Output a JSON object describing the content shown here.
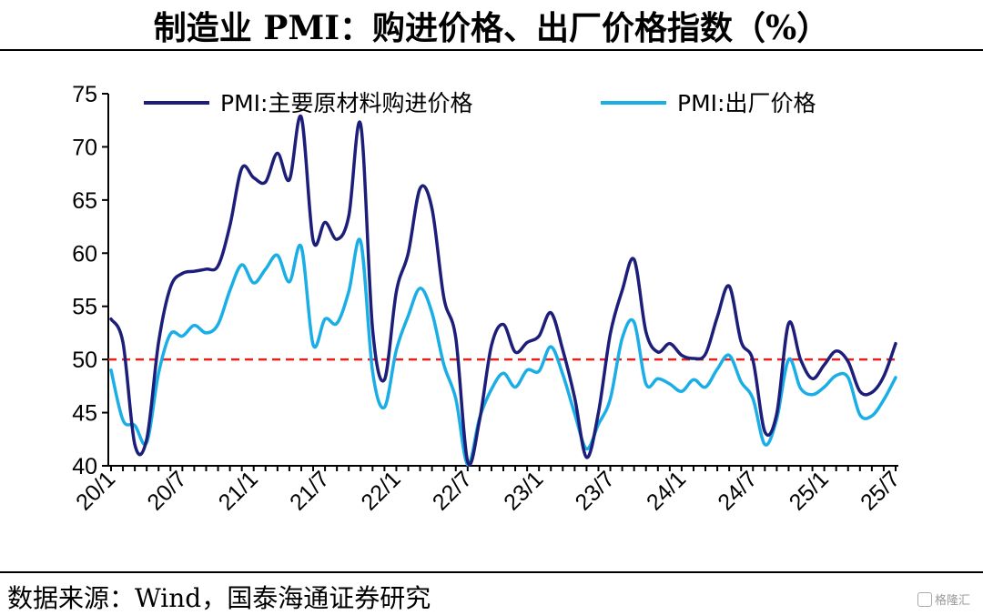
{
  "title": "制造业 PMI：购进价格、出厂价格指数（%）",
  "source": "数据来源：Wind，国泰海通证券研究",
  "watermark": "格隆汇",
  "chart_data": {
    "type": "line",
    "title": "制造业 PMI：购进价格、出厂价格指数（%）",
    "xlabel": "",
    "ylabel": "",
    "ylim": [
      40,
      75
    ],
    "yticks": [
      40,
      45,
      50,
      55,
      60,
      65,
      70,
      75
    ],
    "x": [
      "20/1",
      "20/2",
      "20/3",
      "20/4",
      "20/5",
      "20/6",
      "20/7",
      "20/8",
      "20/9",
      "20/10",
      "20/11",
      "20/12",
      "21/1",
      "21/2",
      "21/3",
      "21/4",
      "21/5",
      "21/6",
      "21/7",
      "21/8",
      "21/9",
      "21/10",
      "21/11",
      "21/12",
      "22/1",
      "22/2",
      "22/3",
      "22/4",
      "22/5",
      "22/6",
      "22/7",
      "22/8",
      "22/9",
      "22/10",
      "22/11",
      "22/12",
      "23/1",
      "23/2",
      "23/3",
      "23/4",
      "23/5",
      "23/6",
      "23/7",
      "23/8",
      "23/9",
      "23/10",
      "23/11",
      "23/12",
      "24/1",
      "24/2",
      "24/3",
      "24/4",
      "24/5",
      "24/6",
      "24/7",
      "24/8",
      "24/9",
      "24/10",
      "24/11",
      "24/12",
      "25/1",
      "25/2",
      "25/3",
      "25/4",
      "25/5",
      "25/6",
      "25/7"
    ],
    "xtick_labels": [
      "20/1",
      "20/7",
      "21/1",
      "21/7",
      "22/1",
      "22/7",
      "23/1",
      "23/7",
      "24/1",
      "24/7",
      "25/1",
      "25/7"
    ],
    "xtick_step": 6,
    "grid": false,
    "legend_position": "top",
    "reference_line": {
      "y": 50,
      "color": "#e8211f",
      "style": "dashed"
    },
    "series": [
      {
        "name": "PMI:主要原材料购进价格",
        "color": "#1c1e7a",
        "values": [
          53.8,
          51.6,
          42.0,
          42.5,
          51.6,
          56.8,
          58.1,
          58.3,
          58.5,
          58.8,
          62.6,
          68.0,
          67.1,
          66.7,
          69.4,
          66.9,
          72.8,
          61.2,
          62.9,
          61.3,
          63.5,
          72.1,
          52.9,
          48.1,
          56.4,
          60.0,
          66.1,
          64.2,
          55.8,
          52.0,
          40.4,
          44.3,
          51.3,
          53.3,
          50.7,
          51.6,
          52.2,
          54.4,
          50.9,
          46.4,
          40.8,
          45.0,
          52.4,
          56.5,
          59.4,
          52.6,
          50.7,
          51.5,
          50.4,
          50.1,
          50.5,
          54.0,
          56.9,
          51.7,
          49.9,
          43.2,
          44.9,
          53.4,
          50.0,
          48.2,
          49.5,
          50.8,
          49.8,
          47.0,
          46.9,
          48.4,
          51.5
        ]
      },
      {
        "name": "PMI:出厂价格",
        "color": "#1aaee6",
        "values": [
          49.0,
          44.3,
          43.8,
          42.2,
          48.7,
          52.4,
          52.2,
          53.2,
          52.5,
          53.3,
          56.5,
          58.9,
          57.2,
          58.5,
          59.8,
          57.3,
          60.6,
          51.4,
          53.8,
          53.4,
          56.4,
          61.1,
          48.9,
          45.5,
          50.9,
          54.1,
          56.7,
          54.4,
          49.5,
          46.3,
          40.1,
          44.5,
          47.2,
          48.7,
          47.4,
          49.0,
          48.9,
          51.2,
          48.6,
          44.9,
          41.6,
          43.9,
          46.3,
          52.0,
          53.5,
          47.7,
          48.2,
          47.7,
          47.0,
          48.1,
          47.4,
          49.1,
          50.4,
          47.9,
          46.3,
          42.0,
          44.4,
          50.0,
          47.3,
          46.7,
          47.4,
          48.5,
          48.3,
          44.8,
          44.7,
          46.2,
          48.3
        ]
      }
    ]
  }
}
